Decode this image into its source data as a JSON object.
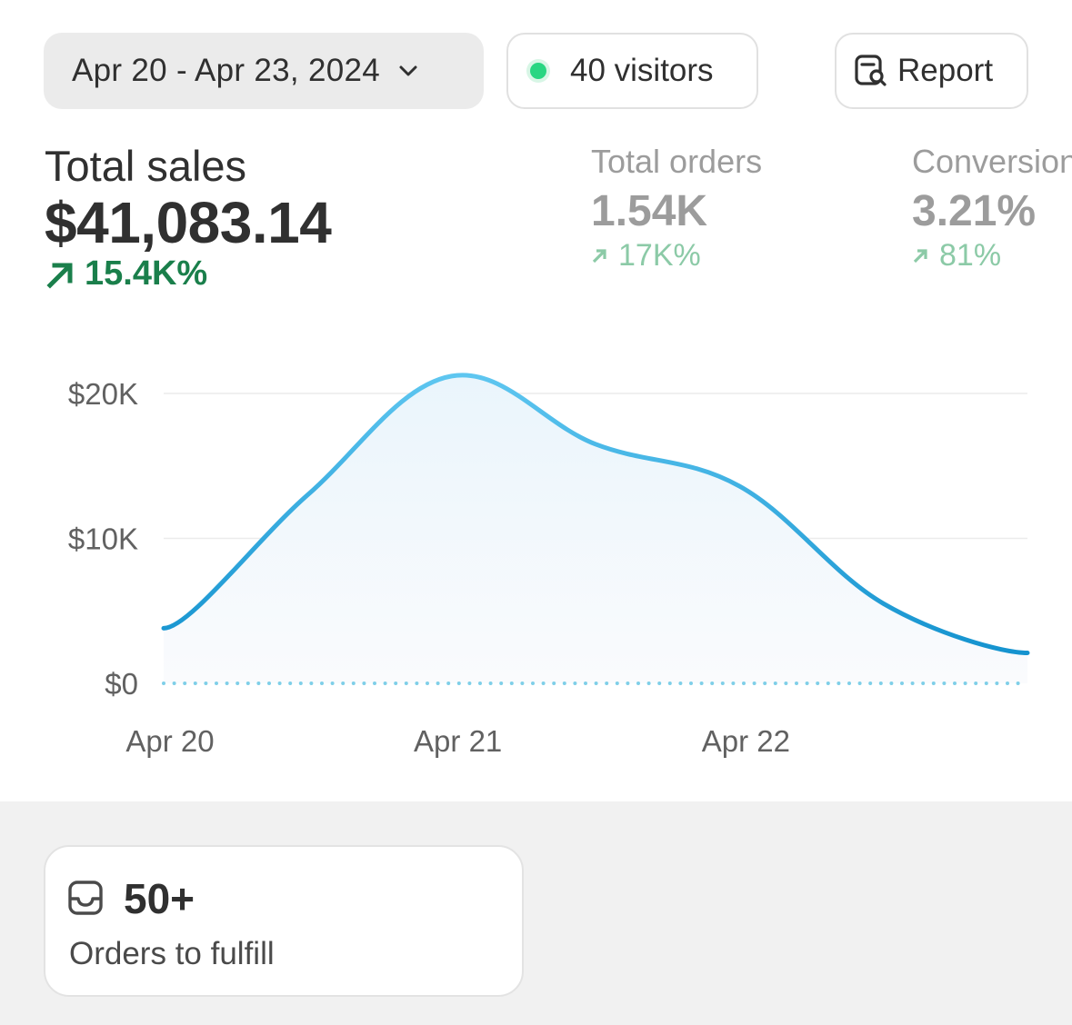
{
  "toolbar": {
    "date_range": "Apr 20 - Apr 23, 2024",
    "visitors": "40 visitors",
    "report": "Report",
    "icons": {
      "date": "chevron-down-icon",
      "visitors": "live-dot-icon",
      "report": "report-search-icon"
    }
  },
  "metrics": {
    "total_sales": {
      "title": "Total sales",
      "value": "$41,083.14",
      "change": "15.4K%"
    },
    "total_orders": {
      "title": "Total orders",
      "value": "1.54K",
      "change": "17K%"
    },
    "conversion": {
      "title": "Conversion",
      "value": "3.21%",
      "change": "81%"
    }
  },
  "colors": {
    "positive": "#1a7f4b",
    "positive_muted": "#8ccaa7",
    "line": "#2aa6dd",
    "live_dot": "#29d682",
    "baseline_dots": "#7fcfe8"
  },
  "chart_data": {
    "type": "line",
    "x": [
      "Apr 20",
      "Apr 20 12:00",
      "Apr 21",
      "Apr 21 12:00",
      "Apr 22",
      "Apr 22 12:00",
      "Apr 23"
    ],
    "series": [
      {
        "values": [
          3800,
          13000,
          21200,
          16500,
          13600,
          5500,
          2100
        ]
      }
    ],
    "x_ticks": [
      "Apr 20",
      "Apr 21",
      "Apr 22"
    ],
    "y_ticks": [
      "$0",
      "$10K",
      "$20K"
    ],
    "ylim": [
      0,
      20000
    ],
    "grid": true
  },
  "card": {
    "count": "50+",
    "label": "Orders to fulfill",
    "icon": "inbox-icon"
  }
}
